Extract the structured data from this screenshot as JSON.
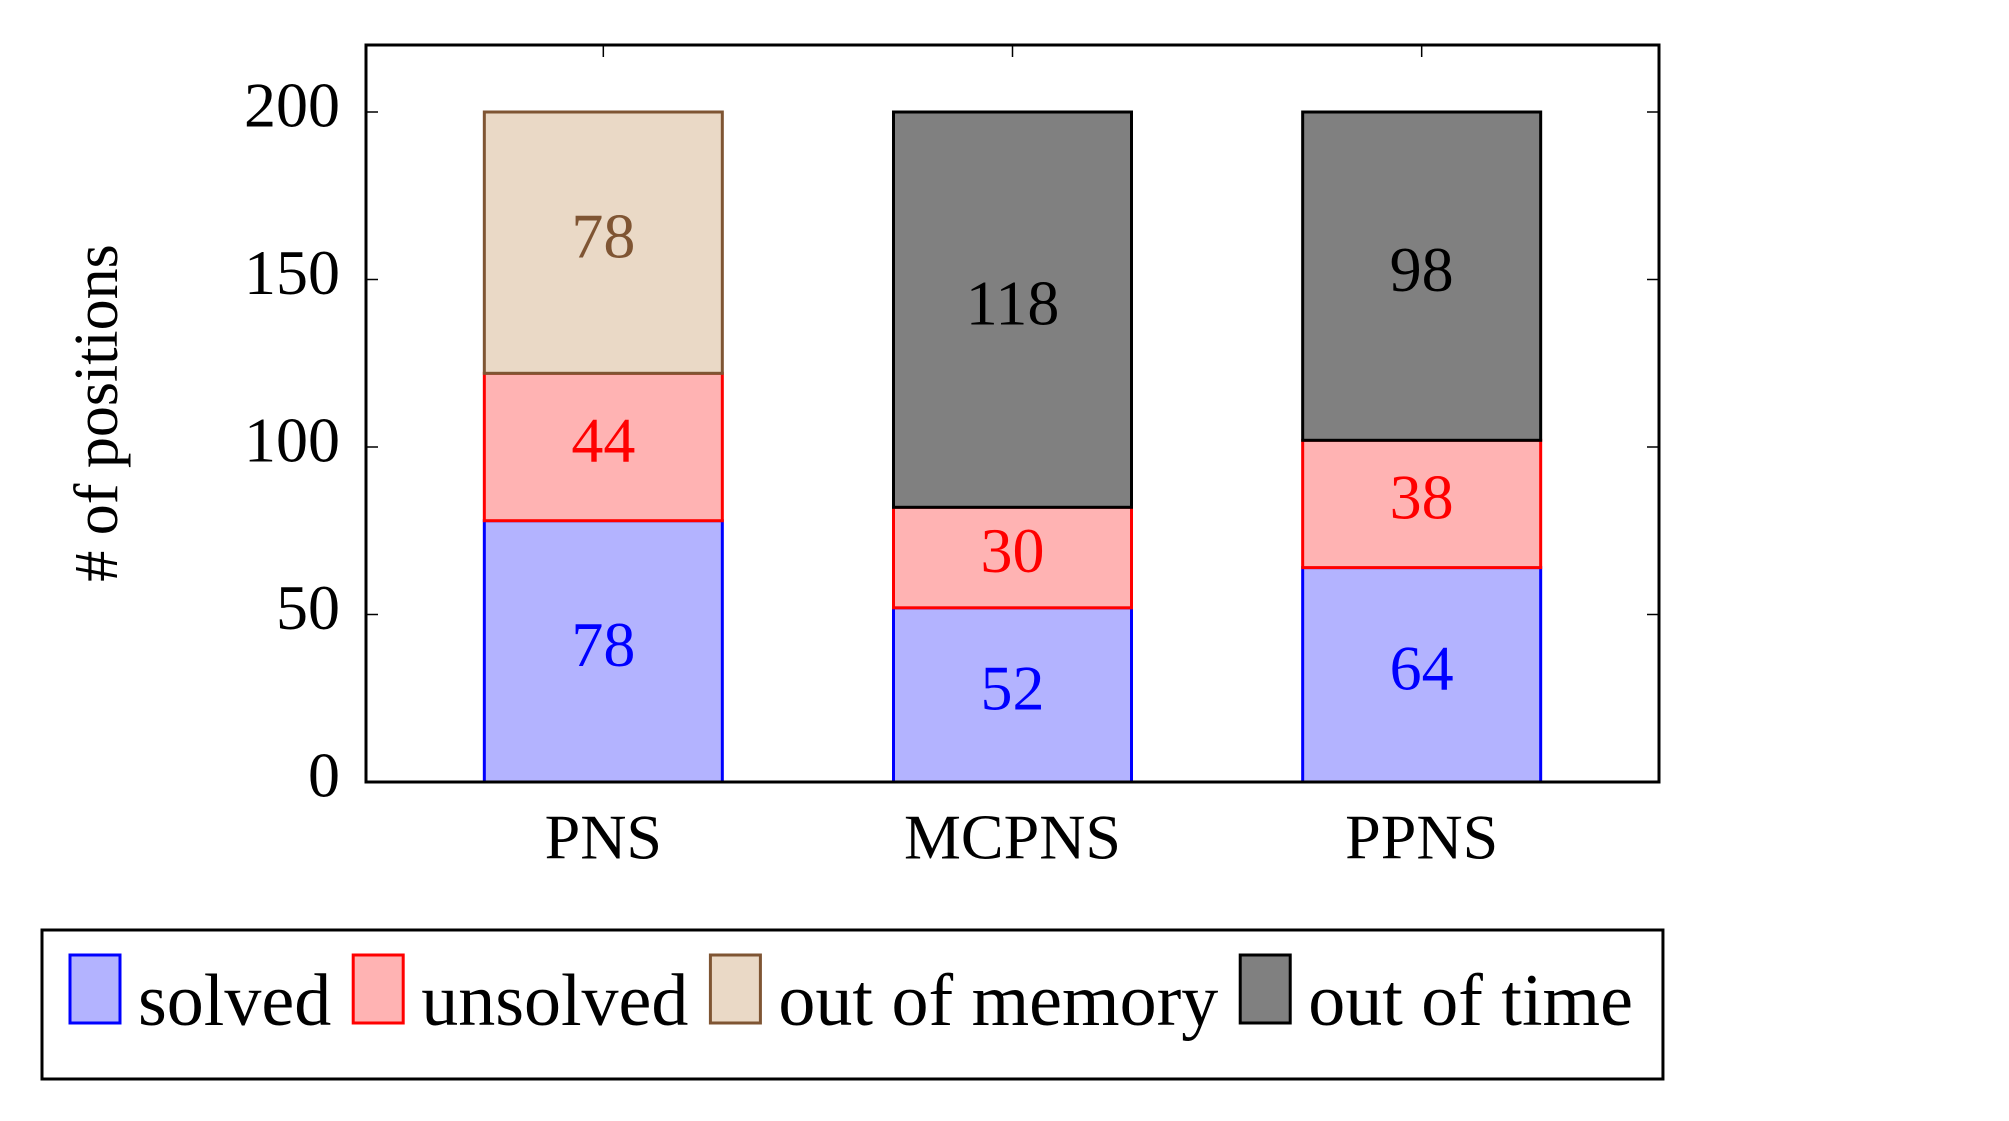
{
  "chart_data": {
    "type": "stacked_bar",
    "y_label": "# of positions",
    "categories": [
      "PNS",
      "MCPNS",
      "PPNS"
    ],
    "series": [
      {
        "name": "solved",
        "color": "#b3b3ff",
        "edge_color": "#0000ff",
        "values": [
          78,
          52,
          64
        ]
      },
      {
        "name": "unsolved",
        "color": "#ffb3b3",
        "edge_color": "#ff0000",
        "values": [
          44,
          30,
          38
        ]
      },
      {
        "name": "out of memory",
        "color": "#ead9c6",
        "edge_color": "#7f5533",
        "values": [
          78,
          null,
          null
        ]
      },
      {
        "name": "out of time",
        "color": "#808080",
        "edge_color": "#000000",
        "values": [
          null,
          118,
          98
        ]
      }
    ],
    "ylim": [
      0,
      220
    ],
    "yticks": [
      0,
      50,
      100,
      150,
      200
    ],
    "legend": "bottom"
  }
}
